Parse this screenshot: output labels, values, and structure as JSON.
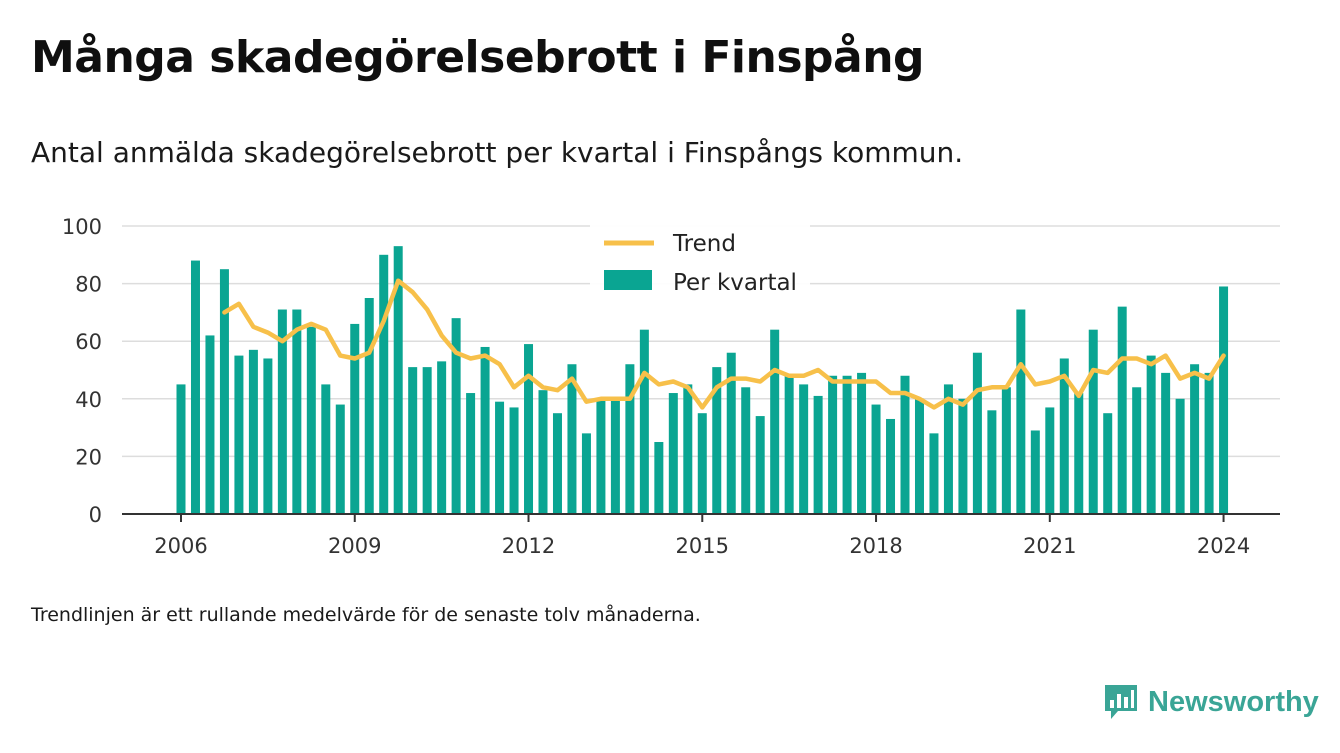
{
  "title": "Många skadegörelsebrott i Finspång",
  "subtitle": "Antal anmälda skadegörelsebrott per kvartal i Finspångs kommun.",
  "footnote": "Trendlinjen är ett rullande medelvärde för de senaste tolv månaderna.",
  "brand": {
    "name": "Newsworthy",
    "icon": "newsworthy-logo-icon"
  },
  "colors": {
    "bars": "#0aa592",
    "trend": "#f7c04a",
    "grid": "#dddddd",
    "axis": "#333333"
  },
  "chart_data": {
    "type": "bar",
    "x_start": "2006 Q1",
    "categories": [
      "2006 Q1",
      "2006 Q2",
      "2006 Q3",
      "2006 Q4",
      "2007 Q1",
      "2007 Q2",
      "2007 Q3",
      "2007 Q4",
      "2008 Q1",
      "2008 Q2",
      "2008 Q3",
      "2008 Q4",
      "2009 Q1",
      "2009 Q2",
      "2009 Q3",
      "2009 Q4",
      "2010 Q1",
      "2010 Q2",
      "2010 Q3",
      "2010 Q4",
      "2011 Q1",
      "2011 Q2",
      "2011 Q3",
      "2011 Q4",
      "2012 Q1",
      "2012 Q2",
      "2012 Q3",
      "2012 Q4",
      "2013 Q1",
      "2013 Q2",
      "2013 Q3",
      "2013 Q4",
      "2014 Q1",
      "2014 Q2",
      "2014 Q3",
      "2014 Q4",
      "2015 Q1",
      "2015 Q2",
      "2015 Q3",
      "2015 Q4",
      "2016 Q1",
      "2016 Q2",
      "2016 Q3",
      "2016 Q4",
      "2017 Q1",
      "2017 Q2",
      "2017 Q3",
      "2017 Q4",
      "2018 Q1",
      "2018 Q2",
      "2018 Q3",
      "2018 Q4",
      "2019 Q1",
      "2019 Q2",
      "2019 Q3",
      "2019 Q4",
      "2020 Q1",
      "2020 Q2",
      "2020 Q3",
      "2020 Q4",
      "2021 Q1",
      "2021 Q2",
      "2021 Q3",
      "2021 Q4",
      "2022 Q1",
      "2022 Q2",
      "2022 Q3",
      "2022 Q4",
      "2023 Q1",
      "2023 Q2",
      "2023 Q3",
      "2023 Q4",
      "2024 Q1"
    ],
    "series": [
      {
        "name": "Per kvartal",
        "type": "bar",
        "values": [
          45,
          88,
          62,
          85,
          55,
          57,
          54,
          71,
          71,
          65,
          45,
          38,
          66,
          75,
          90,
          93,
          51,
          51,
          53,
          68,
          42,
          58,
          39,
          37,
          59,
          43,
          35,
          52,
          28,
          40,
          40,
          52,
          64,
          25,
          42,
          45,
          35,
          51,
          56,
          44,
          34,
          64,
          48,
          45,
          41,
          48,
          48,
          49,
          38,
          33,
          48,
          40,
          28,
          45,
          40,
          56,
          36,
          44,
          71,
          29,
          37,
          54,
          42,
          64,
          35,
          72,
          44,
          55,
          49,
          40,
          52,
          49,
          79
        ]
      },
      {
        "name": "Trend",
        "type": "line",
        "values": [
          null,
          null,
          null,
          70,
          73,
          65,
          63,
          60,
          64,
          66,
          64,
          55,
          54,
          56,
          67,
          81,
          77,
          71,
          62,
          56,
          54,
          55,
          52,
          44,
          48,
          44,
          43,
          47,
          39,
          40,
          40,
          40,
          49,
          45,
          46,
          44,
          37,
          44,
          47,
          47,
          46,
          50,
          48,
          48,
          50,
          46,
          46,
          46,
          46,
          42,
          42,
          40,
          37,
          40,
          38,
          43,
          44,
          44,
          52,
          45,
          46,
          48,
          41,
          50,
          49,
          54,
          54,
          52,
          55,
          47,
          49,
          47,
          55
        ]
      }
    ],
    "x_ticks": [
      "2006",
      "2009",
      "2012",
      "2015",
      "2018",
      "2021",
      "2024"
    ],
    "y_ticks": [
      0,
      20,
      40,
      60,
      80,
      100
    ],
    "ylim": [
      0,
      100
    ],
    "grid": "horizontal",
    "legend": {
      "position": "top-center",
      "entries": [
        "Trend",
        "Per kvartal"
      ]
    }
  }
}
